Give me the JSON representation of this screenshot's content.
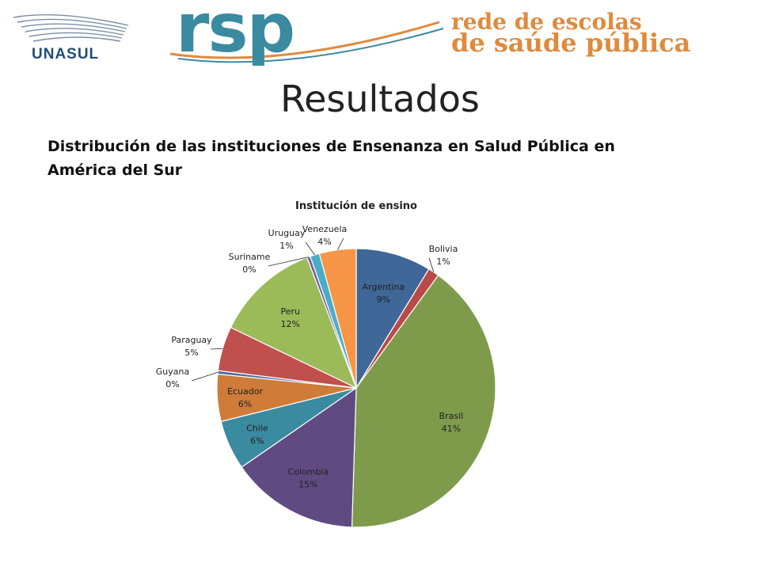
{
  "header": {
    "unasul_label": "UNASUL",
    "rsp_label": "rsp",
    "tagline_line1": "rede de escolas",
    "tagline_line2": "de saúde pública"
  },
  "page_title": "Resultados",
  "subtitle": "Distribución de las instituciones de Ensenanza en Salud Pública en América del Sur",
  "colors": {
    "rsp_blue": "#3a8aa0",
    "rsp_orange": "#e08a3c",
    "unasul_blue": "#1f4e79"
  },
  "chart_data": {
    "type": "pie",
    "title": "Institución de ensino",
    "labels": [
      "Argentina",
      "Bolivia",
      "Brasil",
      "Colombia",
      "Chile",
      "Ecuador",
      "Guyana",
      "Paraguay",
      "Peru",
      "Suriname",
      "Uruguay",
      "Venezuela"
    ],
    "percent_labels": [
      "9%",
      "1%",
      "41%",
      "15%",
      "6%",
      "6%",
      "0%",
      "5%",
      "12%",
      "0%",
      "1%",
      "4%"
    ],
    "values": [
      8.8,
      1.3,
      40.8,
      15.0,
      5.8,
      5.5,
      0.4,
      5.2,
      12.2,
      0.4,
      1.1,
      4.3
    ],
    "colors": [
      "#3f6797",
      "#b84a4a",
      "#7e9b4c",
      "#5f4b82",
      "#3a8aa0",
      "#cf7b3a",
      "#4a6ea3",
      "#c0504d",
      "#9bbb59",
      "#7b5aa3",
      "#4bacc6",
      "#f79646"
    ],
    "start_angle_deg": 0,
    "direction": "clockwise"
  }
}
